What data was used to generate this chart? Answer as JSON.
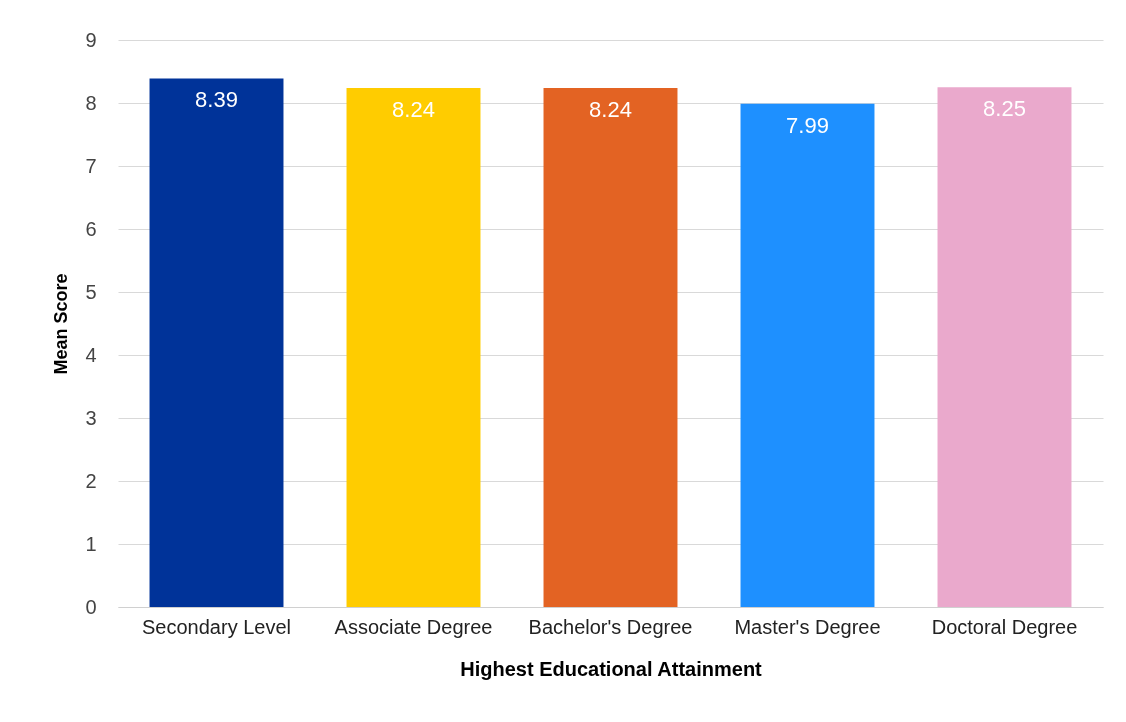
{
  "chart_data": {
    "type": "bar",
    "xlabel": "Highest Educational Attainment",
    "ylabel": "Mean Score",
    "categories": [
      "Secondary Level",
      "Associate Degree",
      "Bachelor's Degree",
      "Master's Degree",
      "Doctoral Degree"
    ],
    "values": [
      8.39,
      8.24,
      8.24,
      7.99,
      8.25
    ],
    "colors": [
      "#003399",
      "#ffcc00",
      "#e36323",
      "#1e90ff",
      "#eaa9cc"
    ],
    "ylim": [
      0,
      9
    ],
    "yticks": [
      0,
      1,
      2,
      3,
      4,
      5,
      6,
      7,
      8,
      9
    ],
    "grid": "y",
    "data_labels": true
  }
}
